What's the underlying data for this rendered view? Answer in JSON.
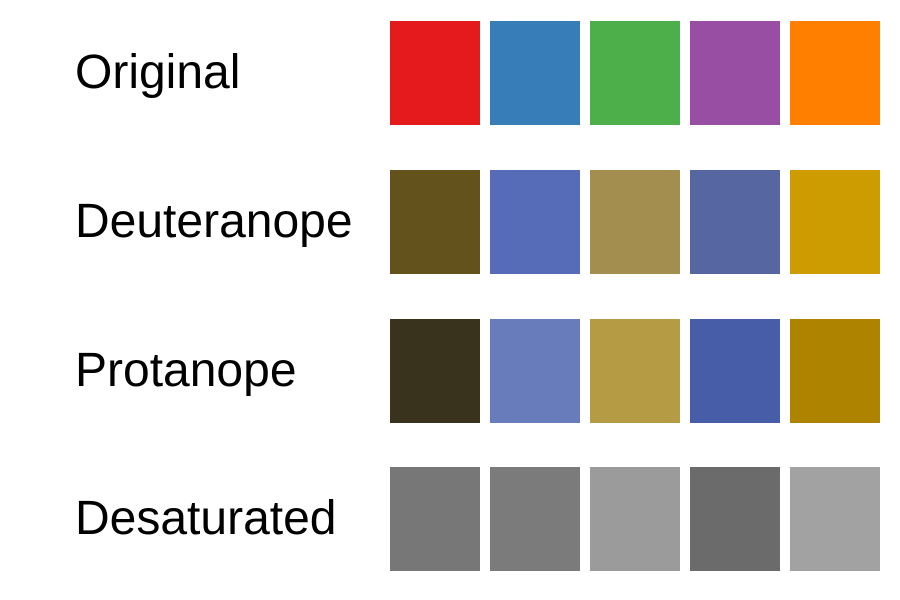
{
  "chart_data": {
    "type": "heatmap",
    "title": "",
    "rows": [
      {
        "label": "Original",
        "colors": [
          "#E41A1C",
          "#377EB8",
          "#4DAF4A",
          "#984EA3",
          "#FF7F00"
        ]
      },
      {
        "label": "Deuteranope",
        "colors": [
          "#63521C",
          "#566CB8",
          "#A38E4F",
          "#5566A0",
          "#CC9C00"
        ]
      },
      {
        "label": "Protanope",
        "colors": [
          "#39331D",
          "#687BBB",
          "#B49B44",
          "#485DA8",
          "#AE8300"
        ]
      },
      {
        "label": "Desaturated",
        "colors": [
          "#777777",
          "#7B7B7B",
          "#9B9B9B",
          "#6B6B6B",
          "#A2A2A2"
        ]
      }
    ]
  }
}
